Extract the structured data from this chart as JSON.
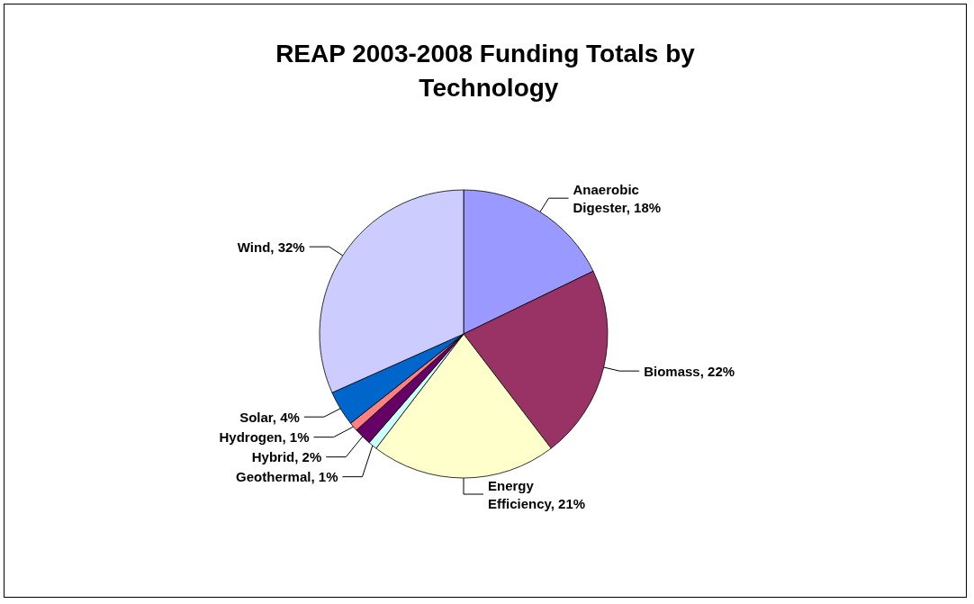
{
  "chart_data": {
    "type": "pie",
    "title": "REAP 2003-2008 Funding Totals by Technology",
    "categories": [
      "Anaerobic Digester",
      "Biomass",
      "Energy Efficiency",
      "Geothermal",
      "Hybrid",
      "Hydrogen",
      "Solar",
      "Wind"
    ],
    "values": [
      18,
      22,
      21,
      1,
      2,
      1,
      4,
      32
    ],
    "value_labels": [
      "18%",
      "22%",
      "21%",
      "1%",
      "2%",
      "1%",
      "4%",
      "32%"
    ],
    "colors": [
      "#9999ff",
      "#993366",
      "#ffffcc",
      "#ccffff",
      "#660066",
      "#ff8080",
      "#0066cc",
      "#ccccff"
    ],
    "legend": false
  }
}
